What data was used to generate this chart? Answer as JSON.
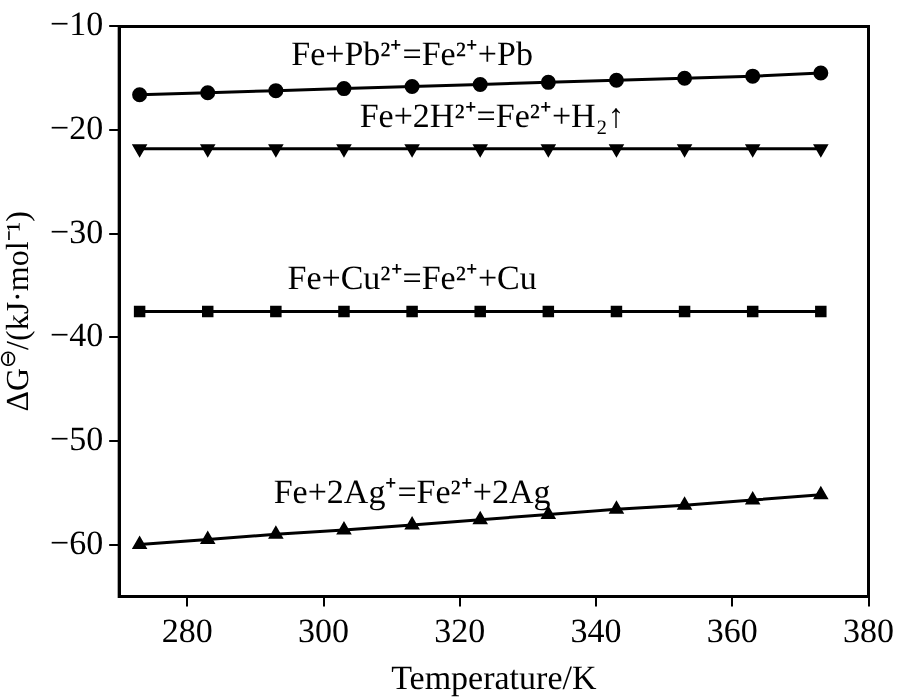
{
  "chart_data": {
    "type": "line",
    "xlabel": "Temperature/K",
    "ylabel": "ΔG$^{⊖}$/(kJ·mol⁻¹)",
    "x": [
      273,
      283,
      293,
      303,
      313,
      323,
      333,
      343,
      353,
      363,
      373
    ],
    "xlim": [
      270,
      380
    ],
    "xticks": [
      280,
      300,
      320,
      340,
      360,
      380
    ],
    "ylim": [
      -65,
      -10
    ],
    "yticks": [
      -60,
      -50,
      -40,
      -30,
      -20,
      -10
    ],
    "grid": false,
    "legend": false,
    "line_style": "solid",
    "series": [
      {
        "name": "Fe+Pb²⁺=Fe²⁺+Pb",
        "color": "#000000",
        "marker": "circle",
        "values": [
          -16.6,
          -16.4,
          -16.2,
          -16.0,
          -15.8,
          -15.6,
          -15.4,
          -15.2,
          -15.0,
          -14.8,
          -14.5
        ]
      },
      {
        "name": "Fe+2H²⁺=Fe²⁺+H₂↑",
        "color": "#000000",
        "marker": "triangle-down",
        "values": [
          -21.8,
          -21.8,
          -21.8,
          -21.8,
          -21.8,
          -21.8,
          -21.8,
          -21.8,
          -21.8,
          -21.8,
          -21.8
        ]
      },
      {
        "name": "Fe+Cu²⁺=Fe²⁺+Cu",
        "color": "#000000",
        "marker": "square",
        "values": [
          -37.5,
          -37.5,
          -37.5,
          -37.5,
          -37.5,
          -37.5,
          -37.5,
          -37.5,
          -37.5,
          -37.5,
          -37.5
        ]
      },
      {
        "name": "Fe+2Ag⁺=Fe²⁺+2Ag",
        "color": "#000000",
        "marker": "triangle",
        "values": [
          -60.0,
          -59.5,
          -59.0,
          -58.6,
          -58.1,
          -57.6,
          -57.1,
          -56.6,
          -56.2,
          -55.7,
          -55.2
        ]
      }
    ]
  }
}
